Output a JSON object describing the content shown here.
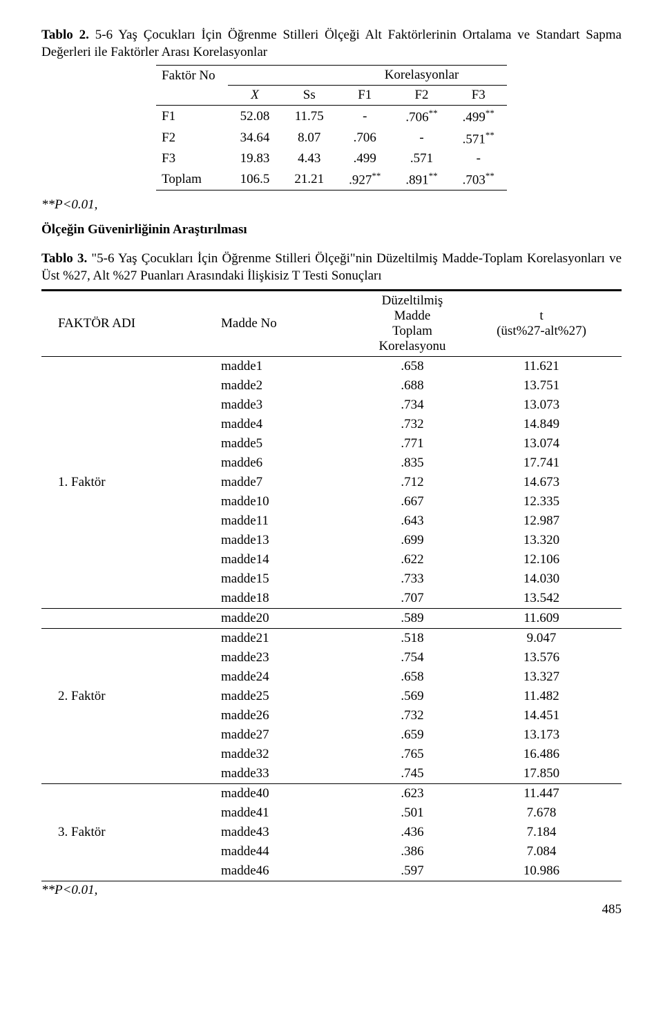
{
  "table2": {
    "caption_bold": "Tablo 2.",
    "caption_rest": " 5-6 Yaş Çocukları İçin Öğrenme Stilleri Ölçeği Alt Faktörlerinin Ortalama ve Standart Sapma Değerleri ile Faktörler Arası Korelasyonlar",
    "header_faktor": "Faktör No",
    "header_korel": "Korelasyonlar",
    "col_X": "X",
    "col_Ss": "Ss",
    "col_F1": "F1",
    "col_F2": "F2",
    "col_F3": "F3",
    "rows": [
      {
        "label": "F1",
        "x": "52.08",
        "ss": "11.75",
        "f1": "-",
        "f2": ".706",
        "f2star": "**",
        "f3": ".499",
        "f3star": "**"
      },
      {
        "label": "F2",
        "x": "34.64",
        "ss": "8.07",
        "f1": ".706",
        "f1star": "",
        "f2": "-",
        "f2star": "",
        "f3": ".571",
        "f3star": "**"
      },
      {
        "label": "F3",
        "x": "19.83",
        "ss": "4.43",
        "f1": ".499",
        "f1star": "",
        "f2": ".571",
        "f2star": "",
        "f3": "-",
        "f3star": ""
      },
      {
        "label": "Toplam",
        "x": "106.5",
        "ss": "21.21",
        "f1": ".927",
        "f1star": "**",
        "f2": ".891",
        "f2star": "**",
        "f3": ".703",
        "f3star": "**"
      }
    ]
  },
  "pnote1": "**P<0.01,",
  "section_heading": "Ölçeğin Güvenirliğinin Araştırılması",
  "table3": {
    "caption_bold": "Tablo 3.",
    "caption_rest": " \"5-6 Yaş Çocukları İçin Öğrenme Stilleri Ölçeği\"nin Düzeltilmiş Madde-Toplam Korelasyonları ve Üst %27, Alt %27 Puanları Arasındaki İlişkisiz T Testi Sonuçları",
    "col_faktor": "FAKTÖR ADI",
    "col_madde": "Madde No",
    "col_corr_l1": "Düzeltilmiş Madde",
    "col_corr_l2": "Toplam Korelasyonu",
    "col_t_l1": "t",
    "col_t_l2": "(üst%27-alt%27)",
    "group1_label": "1. Faktör",
    "group1": [
      {
        "m": "madde1",
        "c": ".658",
        "t": "11.621"
      },
      {
        "m": "madde2",
        "c": ".688",
        "t": "13.751"
      },
      {
        "m": "madde3",
        "c": ".734",
        "t": "13.073"
      },
      {
        "m": "madde4",
        "c": ".732",
        "t": "14.849"
      },
      {
        "m": "madde5",
        "c": ".771",
        "t": "13.074"
      },
      {
        "m": "madde6",
        "c": ".835",
        "t": "17.741"
      },
      {
        "m": "madde7",
        "c": ".712",
        "t": "14.673"
      },
      {
        "m": "madde10",
        "c": ".667",
        "t": "12.335"
      },
      {
        "m": "madde11",
        "c": ".643",
        "t": "12.987"
      },
      {
        "m": "madde13",
        "c": ".699",
        "t": "13.320"
      },
      {
        "m": "madde14",
        "c": ".622",
        "t": "12.106"
      },
      {
        "m": "madde15",
        "c": ".733",
        "t": "14.030"
      },
      {
        "m": "madde18",
        "c": ".707",
        "t": "13.542"
      }
    ],
    "group_gap": {
      "m": "madde20",
      "c": ".589",
      "t": "11.609"
    },
    "group2_label": "2. Faktör",
    "group2": [
      {
        "m": "madde21",
        "c": ".518",
        "t": "9.047"
      },
      {
        "m": "madde23",
        "c": ".754",
        "t": "13.576"
      },
      {
        "m": "madde24",
        "c": ".658",
        "t": "13.327"
      },
      {
        "m": "madde25",
        "c": ".569",
        "t": "11.482"
      },
      {
        "m": "madde26",
        "c": ".732",
        "t": "14.451"
      },
      {
        "m": "madde27",
        "c": ".659",
        "t": "13.173"
      },
      {
        "m": "madde32",
        "c": ".765",
        "t": "16.486"
      },
      {
        "m": "madde33",
        "c": ".745",
        "t": "17.850"
      }
    ],
    "group3_label": "3. Faktör",
    "group3": [
      {
        "m": "madde40",
        "c": ".623",
        "t": "11.447"
      },
      {
        "m": "madde41",
        "c": ".501",
        "t": "7.678"
      },
      {
        "m": "madde43",
        "c": ".436",
        "t": "7.184"
      },
      {
        "m": "madde44",
        "c": ".386",
        "t": "7.084"
      },
      {
        "m": "madde46",
        "c": ".597",
        "t": "10.986"
      }
    ]
  },
  "pnote2": "**P<0.01,",
  "page_number": "485"
}
